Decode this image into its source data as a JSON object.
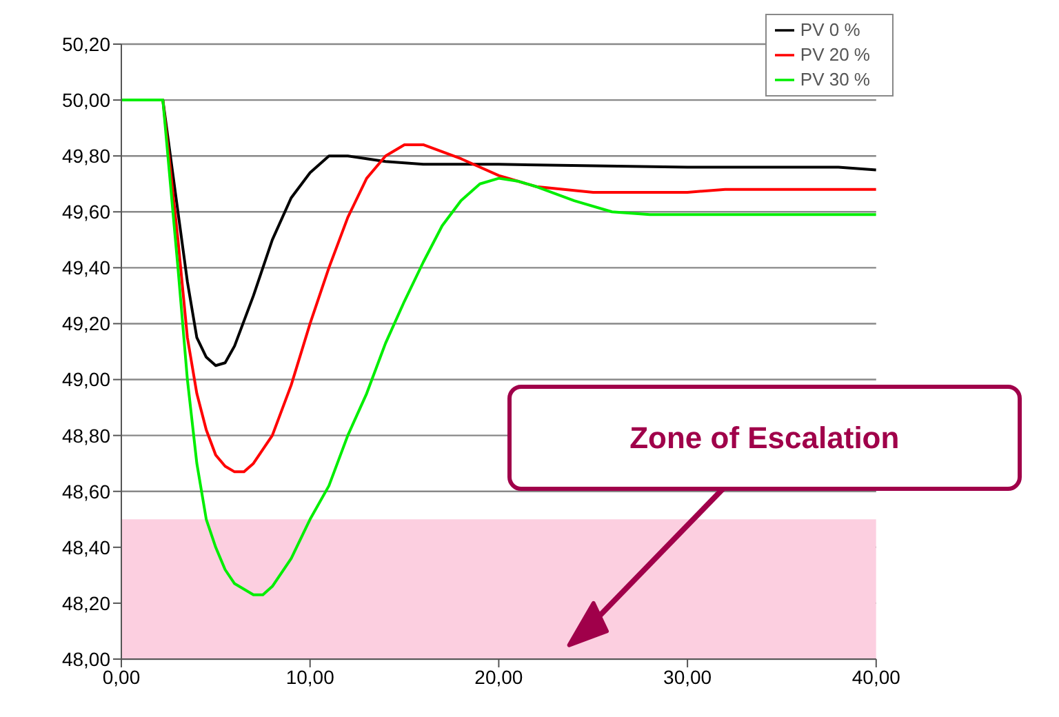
{
  "chart_data": {
    "type": "line",
    "xlim": [
      0,
      40
    ],
    "xticks": [
      {
        "value": 0,
        "label": "0,00"
      },
      {
        "value": 10,
        "label": "10,00"
      },
      {
        "value": 20,
        "label": "20,00"
      },
      {
        "value": 30,
        "label": "30,00"
      },
      {
        "value": 40,
        "label": "40,00"
      }
    ],
    "ylim": [
      48.0,
      50.2
    ],
    "yticks": [
      {
        "value": 48.0,
        "label": "48,00"
      },
      {
        "value": 48.2,
        "label": "48,20"
      },
      {
        "value": 48.4,
        "label": "48,40"
      },
      {
        "value": 48.6,
        "label": "48,60"
      },
      {
        "value": 48.8,
        "label": "48,80"
      },
      {
        "value": 49.0,
        "label": "49,00"
      },
      {
        "value": 49.2,
        "label": "49,20"
      },
      {
        "value": 49.4,
        "label": "49,40"
      },
      {
        "value": 49.6,
        "label": "49,60"
      },
      {
        "value": 49.8,
        "label": "49,80"
      },
      {
        "value": 50.0,
        "label": "50,00"
      },
      {
        "value": 50.2,
        "label": "50,20"
      }
    ],
    "grid": "y",
    "legend": "top right",
    "marker": "none",
    "line_style": "solid",
    "bands": [
      {
        "axis": "y",
        "from": 48.0,
        "to": 48.5,
        "label": "Zone of Escalation",
        "color": "#fccfe0"
      }
    ],
    "series": [
      {
        "name": "PV 0 %",
        "color": "#000000",
        "x": [
          0,
          2.2,
          3,
          3.5,
          4,
          4.5,
          5,
          5.5,
          6,
          7,
          8,
          9,
          10,
          11,
          12,
          13,
          14,
          16,
          20,
          30,
          38,
          40
        ],
        "values": [
          50.0,
          50.0,
          49.6,
          49.35,
          49.15,
          49.08,
          49.05,
          49.06,
          49.12,
          49.3,
          49.5,
          49.65,
          49.74,
          49.8,
          49.8,
          49.79,
          49.78,
          49.77,
          49.77,
          49.76,
          49.76,
          49.75
        ]
      },
      {
        "name": "PV 20 %",
        "color": "#ff0000",
        "x": [
          0,
          2.2,
          3,
          3.5,
          4,
          4.5,
          5,
          5.5,
          6,
          6.5,
          7,
          8,
          9,
          10,
          11,
          12,
          13,
          14,
          15,
          16,
          18,
          20,
          22,
          25,
          30,
          32,
          40
        ],
        "values": [
          50.0,
          50.0,
          49.5,
          49.15,
          48.95,
          48.82,
          48.73,
          48.69,
          48.67,
          48.67,
          48.7,
          48.8,
          48.98,
          49.2,
          49.4,
          49.58,
          49.72,
          49.8,
          49.84,
          49.84,
          49.79,
          49.73,
          49.69,
          49.67,
          49.67,
          49.68,
          49.68
        ]
      },
      {
        "name": "PV 30 %",
        "color": "#00ee00",
        "x": [
          0,
          2.2,
          3,
          3.5,
          4,
          4.5,
          5,
          5.5,
          6,
          7,
          7.5,
          8,
          9,
          10,
          11,
          12,
          13,
          14,
          15,
          16,
          17,
          18,
          19,
          20,
          21,
          22,
          24,
          26,
          28,
          40
        ],
        "values": [
          50.0,
          50.0,
          49.4,
          49.0,
          48.7,
          48.5,
          48.4,
          48.32,
          48.27,
          48.23,
          48.23,
          48.26,
          48.36,
          48.5,
          48.62,
          48.8,
          48.95,
          49.13,
          49.28,
          49.42,
          49.55,
          49.64,
          49.7,
          49.72,
          49.71,
          49.69,
          49.64,
          49.6,
          49.59,
          49.59
        ]
      }
    ]
  }
}
